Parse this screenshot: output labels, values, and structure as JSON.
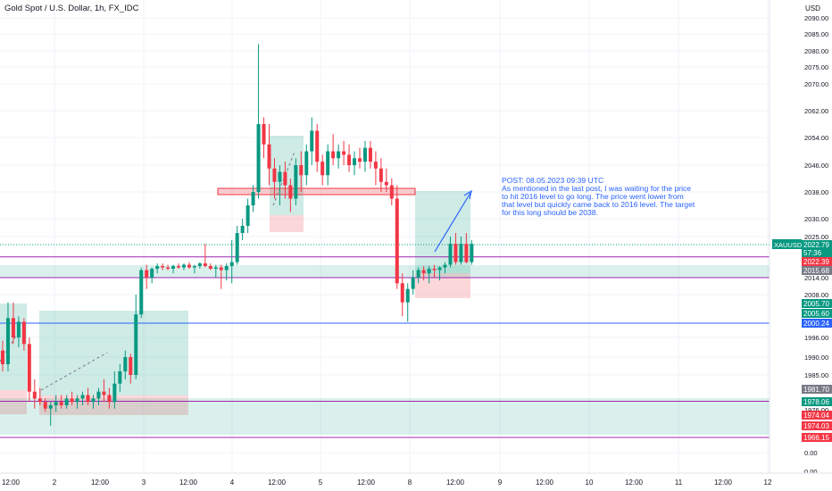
{
  "header": {
    "title": "Gold Spot / U.S. Dollar, 1h, FX_IDC"
  },
  "price_axis": {
    "currency": "USD",
    "ticks": [
      "2090.00",
      "2085.00",
      "2080.00",
      "2075.00",
      "2070.00",
      "2062.00",
      "2054.00",
      "2046.00",
      "2038.00",
      "2030.00",
      "2025.00",
      "2014.00",
      "2008.00",
      "1996.00",
      "1990.00",
      "1985.00",
      "1976.00",
      "0.00",
      "0.00",
      "0.00"
    ],
    "badges": [
      {
        "name": "current-price-badge",
        "label": "2022.79",
        "sub": "57:36",
        "color": "#089981"
      },
      {
        "name": "level-2022-badge",
        "label": "2022.39",
        "color": "#f23645"
      },
      {
        "name": "level-2015-badge",
        "label": "2015.68",
        "color": "#787b86"
      },
      {
        "name": "level-2005-70-badge",
        "label": "2005.70",
        "color": "#089981"
      },
      {
        "name": "level-2005-60-badge",
        "label": "2005.60",
        "color": "#089981"
      },
      {
        "name": "level-2000-badge",
        "label": "2000.24",
        "color": "#2962ff"
      },
      {
        "name": "level-1981-badge",
        "label": "1981.70",
        "color": "#787b86"
      },
      {
        "name": "level-1978-badge",
        "label": "1978.06",
        "color": "#089981"
      },
      {
        "name": "level-1974-04-badge",
        "label": "1974.04",
        "color": "#f23645"
      },
      {
        "name": "level-1974-03-badge",
        "label": "1974.03",
        "color": "#f23645"
      },
      {
        "name": "level-1966-badge",
        "label": "1966.15",
        "color": "#f23645"
      }
    ],
    "symbol_tag": "XAUUSD"
  },
  "time_axis": {
    "ticks": [
      "12:00",
      "2",
      "12:00",
      "3",
      "12:00",
      "4",
      "12:00",
      "5",
      "12:00",
      "8",
      "12:00",
      "9",
      "12:00",
      "10",
      "12:00",
      "11",
      "12:00",
      "12"
    ]
  },
  "annotation": {
    "lines": [
      "POST: 08.05.2023 09:39 UTC",
      "As mentioned in the last post, I was waiting for the price",
      "to hit 2016 level to go long. The price went lower from",
      "that level but quickly came back to 2016 level. The target",
      "for this long should be 2038."
    ]
  },
  "colors": {
    "up": "#089981",
    "down": "#f23645",
    "line_blue": "#2962ff",
    "line_purple": "#9c27b0"
  },
  "chart_data": {
    "type": "candlestick",
    "title": "Gold Spot / U.S. Dollar, 1h, FX_IDC",
    "ylabel": "USD",
    "candles": [
      [
        1992,
        1995,
        1986,
        1988
      ],
      [
        1988,
        2006,
        1986,
        2003
      ],
      [
        2003,
        2006,
        1994,
        1996
      ],
      [
        1996,
        2004,
        1993,
        2001
      ],
      [
        2001,
        2003,
        1992,
        1994
      ],
      [
        1994,
        1996,
        1978,
        1981
      ],
      [
        1981,
        1984,
        1976,
        1979
      ],
      [
        1979,
        1982,
        1977,
        1978
      ],
      [
        1978,
        1979,
        1975,
        1976
      ],
      [
        1976,
        1978,
        1974,
        1977
      ],
      [
        1977,
        1980,
        1975,
        1978
      ],
      [
        1978,
        1980,
        1976,
        1977
      ],
      [
        1977,
        1980,
        1976,
        1979
      ],
      [
        1979,
        1981,
        1977,
        1978
      ],
      [
        1978,
        1980,
        1976,
        1979
      ],
      [
        1979,
        1981,
        1977,
        1980
      ],
      [
        1980,
        1982,
        1977,
        1978
      ],
      [
        1978,
        1980,
        1976,
        1979
      ],
      [
        1979,
        1982,
        1977,
        1981
      ],
      [
        1981,
        1984,
        1978,
        1980
      ],
      [
        1980,
        1982,
        1976,
        1978
      ],
      [
        1978,
        1986,
        1976,
        1983
      ],
      [
        1983,
        1988,
        1981,
        1986
      ],
      [
        1986,
        1992,
        1984,
        1990
      ],
      [
        1990,
        1991,
        1983,
        1985
      ],
      [
        1985,
        2008,
        1984,
        2005
      ],
      [
        2005,
        2018,
        2003,
        2016
      ],
      [
        2016,
        2020,
        2010,
        2014
      ],
      [
        2014,
        2018,
        2012,
        2017
      ],
      [
        2017,
        2021,
        2015,
        2019
      ],
      [
        2019,
        2021,
        2016,
        2018
      ],
      [
        2018,
        2020,
        2016,
        2017
      ],
      [
        2017,
        2020,
        2015,
        2019
      ],
      [
        2019,
        2021,
        2017,
        2018
      ],
      [
        2018,
        2021,
        2016,
        2020
      ],
      [
        2020,
        2022,
        2017,
        2018
      ],
      [
        2018,
        2020,
        2015,
        2019
      ],
      [
        2019,
        2022,
        2017,
        2021
      ],
      [
        2021,
        2023,
        2018,
        2019
      ],
      [
        2019,
        2021,
        2016,
        2017
      ],
      [
        2017,
        2020,
        2014,
        2018
      ],
      [
        2018,
        2020,
        2010,
        2016
      ],
      [
        2016,
        2021,
        2013,
        2019
      ],
      [
        2019,
        2024,
        2012,
        2022
      ],
      [
        2022,
        2028,
        2020,
        2026
      ],
      [
        2026,
        2030,
        2024,
        2028
      ],
      [
        2028,
        2036,
        2026,
        2034
      ],
      [
        2034,
        2040,
        2032,
        2038
      ],
      [
        2038,
        2082,
        2036,
        2058
      ],
      [
        2058,
        2060,
        2048,
        2052
      ],
      [
        2052,
        2058,
        2040,
        2045
      ],
      [
        2045,
        2048,
        2036,
        2041
      ],
      [
        2041,
        2046,
        2034,
        2044
      ],
      [
        2044,
        2047,
        2036,
        2040
      ],
      [
        2040,
        2042,
        2032,
        2036
      ],
      [
        2036,
        2048,
        2034,
        2046
      ],
      [
        2046,
        2050,
        2038,
        2043
      ],
      [
        2043,
        2052,
        2040,
        2050
      ],
      [
        2050,
        2060,
        2046,
        2056
      ],
      [
        2056,
        2058,
        2044,
        2047
      ],
      [
        2047,
        2049,
        2040,
        2043
      ],
      [
        2043,
        2052,
        2040,
        2050
      ],
      [
        2050,
        2055,
        2046,
        2048
      ],
      [
        2048,
        2052,
        2045,
        2050
      ],
      [
        2050,
        2053,
        2046,
        2049
      ],
      [
        2049,
        2052,
        2044,
        2046
      ],
      [
        2046,
        2050,
        2043,
        2048
      ],
      [
        2048,
        2051,
        2045,
        2047
      ],
      [
        2047,
        2053,
        2044,
        2051
      ],
      [
        2051,
        2053,
        2045,
        2047
      ],
      [
        2047,
        2050,
        2040,
        2045
      ],
      [
        2045,
        2048,
        2038,
        2041
      ],
      [
        2041,
        2045,
        2038,
        2040
      ],
      [
        2040,
        2042,
        2034,
        2036
      ],
      [
        2036,
        2040,
        2010,
        2012
      ],
      [
        2012,
        2015,
        2004,
        2006
      ],
      [
        2006,
        2012,
        2001,
        2010
      ],
      [
        2010,
        2016,
        2008,
        2014
      ],
      [
        2014,
        2018,
        2012,
        2016
      ],
      [
        2016,
        2019,
        2013,
        2015
      ],
      [
        2015,
        2019,
        2012,
        2017
      ],
      [
        2017,
        2020,
        2014,
        2016
      ],
      [
        2016,
        2019,
        2013,
        2018
      ],
      [
        2018,
        2022,
        2015,
        2020
      ],
      [
        2020,
        2025,
        2018,
        2023
      ],
      [
        2023,
        2026,
        2020,
        2022
      ],
      [
        2022,
        2025,
        2020,
        2023
      ],
      [
        2023,
        2026,
        2021,
        2022
      ],
      [
        2022,
        2024,
        2020,
        2023
      ]
    ],
    "horizontal_lines": [
      {
        "value": 2022.5,
        "color": "#9c27b0"
      },
      {
        "value": 2014.0,
        "color": "#9c27b0"
      },
      {
        "value": 2000.24,
        "color": "#2962ff"
      },
      {
        "value": 1978.2,
        "color": "#9c27b0"
      },
      {
        "value": 1966.15,
        "color": "#9c27b0"
      }
    ],
    "target": 2038
  }
}
